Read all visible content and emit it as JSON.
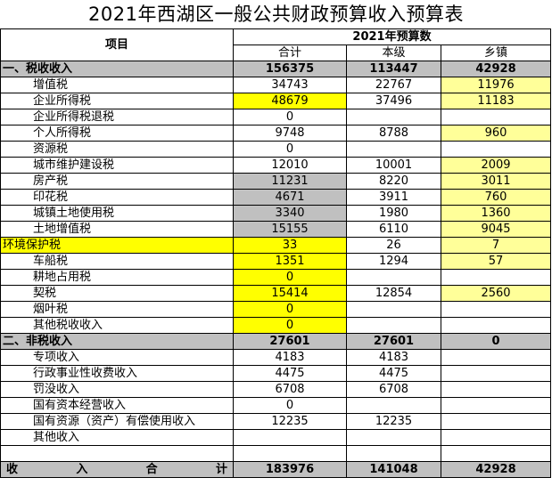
{
  "title": "2021年西湖区一般公共财政预算收入预算表",
  "header": {
    "item": "项目",
    "group": "2021年预算数",
    "cols": [
      "合计",
      "本级",
      "乡镇"
    ]
  },
  "sections": [
    {
      "label": "一、税收收入",
      "values": [
        "156375",
        "113447",
        "42928"
      ]
    },
    {
      "label": "二、非税收入",
      "values": [
        "27601",
        "27601",
        "0"
      ]
    }
  ],
  "tax_rows": [
    {
      "label": "增值税",
      "values": [
        "34743",
        "22767",
        "11976"
      ]
    },
    {
      "label": "企业所得税",
      "values": [
        "48679",
        "37496",
        "11183"
      ]
    },
    {
      "label": "企业所得税退税",
      "values": [
        "0",
        "",
        ""
      ]
    },
    {
      "label": "个人所得税",
      "values": [
        "9748",
        "8788",
        "960"
      ]
    },
    {
      "label": "资源税",
      "values": [
        "0",
        "",
        ""
      ]
    },
    {
      "label": "城市维护建设税",
      "values": [
        "12010",
        "10001",
        "2009"
      ]
    },
    {
      "label": "房产税",
      "values": [
        "11231",
        "8220",
        "3011"
      ]
    },
    {
      "label": "印花税",
      "values": [
        "4671",
        "3911",
        "760"
      ]
    },
    {
      "label": "城镇土地使用税",
      "values": [
        "3340",
        "1980",
        "1360"
      ]
    },
    {
      "label": "土地增值税",
      "values": [
        "15155",
        "6110",
        "9045"
      ]
    },
    {
      "label": "环境保护税",
      "values": [
        "33",
        "26",
        "7"
      ]
    },
    {
      "label": "车船税",
      "values": [
        "1351",
        "1294",
        "57"
      ]
    },
    {
      "label": "耕地占用税",
      "values": [
        "0",
        "",
        ""
      ]
    },
    {
      "label": "契税",
      "values": [
        "15414",
        "12854",
        "2560"
      ]
    },
    {
      "label": "烟叶税",
      "values": [
        "0",
        "",
        ""
      ]
    },
    {
      "label": "其他税收收入",
      "values": [
        "0",
        "",
        ""
      ]
    }
  ],
  "nontax_rows": [
    {
      "label": "专项收入",
      "values": [
        "4183",
        "4183",
        ""
      ]
    },
    {
      "label": "行政事业性收费收入",
      "values": [
        "4475",
        "4475",
        ""
      ]
    },
    {
      "label": "罚没收入",
      "values": [
        "6708",
        "6708",
        ""
      ]
    },
    {
      "label": "国有资本经营收入",
      "values": [
        "0",
        "",
        ""
      ]
    },
    {
      "label": "国有资源（资产）有偿使用收入",
      "values": [
        "12235",
        "12235",
        ""
      ]
    },
    {
      "label": "其他收入",
      "values": [
        "",
        "",
        ""
      ]
    }
  ],
  "total": {
    "chars": [
      "收",
      "入",
      "合",
      "计"
    ],
    "values": [
      "183976",
      "141048",
      "42928"
    ]
  },
  "colors": {
    "grey": "#c0c0c0",
    "yellow": "#ffff00",
    "light_yellow": "#ffff99"
  }
}
